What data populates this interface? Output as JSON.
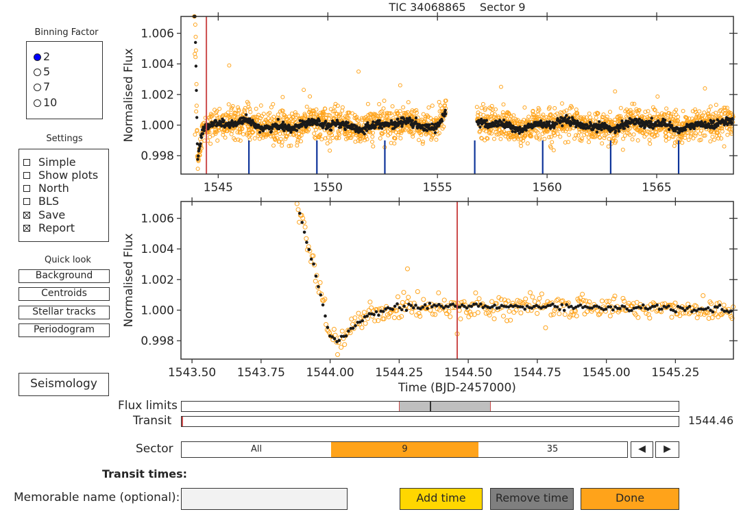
{
  "binning": {
    "title": "Binning Factor",
    "options": [
      "2",
      "5",
      "7",
      "10"
    ],
    "selected": "2"
  },
  "settings": {
    "title": "Settings",
    "items": [
      {
        "label": "Simple",
        "checked": false
      },
      {
        "label": "Show plots",
        "checked": false
      },
      {
        "label": "North",
        "checked": false
      },
      {
        "label": "BLS",
        "checked": false
      },
      {
        "label": "Save",
        "checked": true
      },
      {
        "label": "Report",
        "checked": true
      }
    ]
  },
  "quicklook": {
    "title": "Quick look",
    "buttons": [
      "Background",
      "Centroids",
      "Stellar tracks",
      "Periodogram"
    ]
  },
  "seismology_label": "Seismology",
  "controls": {
    "flux_limits_label": "Flux limits",
    "transit_label": "Transit",
    "transit_value": "1544.46",
    "sector_label": "Sector",
    "sector_options": [
      "All",
      "9",
      "35"
    ],
    "sector_selected": "9",
    "prev_glyph": "◀",
    "next_glyph": "▶",
    "transit_times_label": "Transit times:",
    "memorable_label": "Memorable name (optional):",
    "memorable_value": "",
    "add_time": "Add time",
    "remove_time": "Remove time",
    "done": "Done"
  },
  "colors": {
    "raw": "#ffa31a",
    "binned": "#1a1a1a",
    "transit_line": "#cc4c4c",
    "tick_marks": "#0d3399",
    "radio_on": "#0000ff",
    "sector_selected": "#ffa31a",
    "add_time": "#ffd700",
    "remove_time": "#7f7f7f",
    "done": "#ffa31a"
  },
  "chart_data": [
    {
      "type": "scatter",
      "title": "TIC 34068865    Sector 9",
      "xlabel": "",
      "ylabel": "Normalised Flux",
      "xlim": [
        1543.3,
        1568.5
      ],
      "ylim": [
        0.9968,
        1.0071
      ],
      "xticks": [
        1545,
        1550,
        1555,
        1560,
        1565
      ],
      "yticks": [
        0.998,
        1.0,
        1.002,
        1.004,
        1.006
      ],
      "ytick_labels": [
        "0.998",
        "1.000",
        "1.002",
        "1.004",
        "1.006"
      ],
      "segments": [
        [
          1543.9,
          1555.4
        ],
        [
          1556.8,
          1568.5
        ]
      ],
      "baseline": 1.0,
      "scatter_sd": 0.0005,
      "transit_line": 1544.46,
      "transit_markers": [
        1546.4,
        1549.5,
        1552.6,
        1556.7,
        1559.8,
        1562.9,
        1566.0
      ],
      "outliers": [
        [
          1545.5,
          1.0039
        ],
        [
          1551.4,
          1.0035
        ],
        [
          1546.4,
          0.99925
        ],
        [
          1548.9,
          1.0023
        ],
        [
          1553.3,
          1.0026
        ],
        [
          1557.9,
          1.0025
        ],
        [
          1563.1,
          1.0022
        ],
        [
          1567.2,
          1.0024
        ]
      ],
      "series": [
        {
          "name": "",
          "values": "raw"
        },
        {
          "name": "",
          "values": "binned"
        }
      ]
    },
    {
      "type": "scatter",
      "title": "",
      "xlabel": "Time (BJD-2457000)",
      "ylabel": "Normalised Flux",
      "xlim": [
        1543.46,
        1545.46
      ],
      "ylim": [
        0.9968,
        1.0071
      ],
      "xticks": [
        1543.5,
        1543.75,
        1544.0,
        1544.25,
        1544.5,
        1544.75,
        1545.0,
        1545.25
      ],
      "xtick_labels": [
        "1543.50",
        "1543.75",
        "1544.00",
        "1544.25",
        "1544.50",
        "1544.75",
        "1545.00",
        "1545.25"
      ],
      "yticks": [
        0.998,
        1.0,
        1.002,
        1.004,
        1.006
      ],
      "ytick_labels": [
        "0.998",
        "1.000",
        "1.002",
        "1.004",
        "1.006"
      ],
      "trend_points": [
        [
          1543.88,
          1.007
        ],
        [
          1543.93,
          1.0035
        ],
        [
          1543.97,
          1.0008
        ],
        [
          1544.0,
          0.99825
        ],
        [
          1544.03,
          0.998
        ],
        [
          1544.07,
          0.99865
        ],
        [
          1544.12,
          0.9995
        ],
        [
          1544.2,
          1.0
        ],
        [
          1544.3,
          1.00025
        ],
        [
          1544.5,
          1.00025
        ],
        [
          1545.0,
          1.0002
        ],
        [
          1545.46,
          1.0
        ]
      ],
      "transit_line": 1544.46,
      "outliers": [
        [
          1544.28,
          1.0027
        ],
        [
          1544.46,
          0.99845
        ],
        [
          1544.78,
          0.99885
        ]
      ]
    }
  ]
}
